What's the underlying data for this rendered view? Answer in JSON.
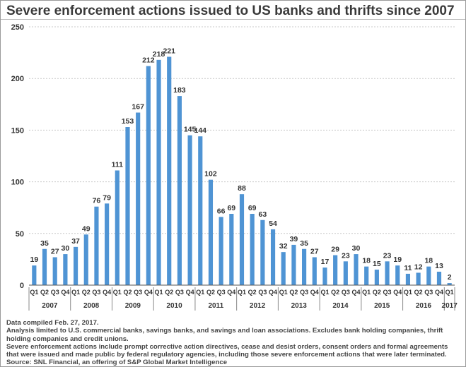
{
  "title": "Severe enforcement actions issued to US banks and thrifts since 2007",
  "chart_data": {
    "type": "bar",
    "ylim": [
      0,
      250
    ],
    "yticks": [
      0,
      50,
      100,
      150,
      200,
      250
    ],
    "grid": true,
    "bar_color": "#4f94d4",
    "categories": [
      "Q1",
      "Q2",
      "Q3",
      "Q4",
      "Q1",
      "Q2",
      "Q3",
      "Q4",
      "Q1",
      "Q2",
      "Q3",
      "Q4",
      "Q1",
      "Q2",
      "Q3",
      "Q4",
      "Q1",
      "Q2",
      "Q3",
      "Q4",
      "Q1",
      "Q2",
      "Q3",
      "Q4",
      "Q1",
      "Q2",
      "Q3",
      "Q4",
      "Q1",
      "Q2",
      "Q3",
      "Q4",
      "Q1",
      "Q2",
      "Q3",
      "Q4",
      "Q1",
      "Q2",
      "Q3",
      "Q4",
      "Q1"
    ],
    "values": [
      19,
      35,
      27,
      30,
      37,
      49,
      76,
      79,
      111,
      153,
      167,
      212,
      218,
      221,
      183,
      145,
      144,
      102,
      66,
      69,
      88,
      69,
      63,
      54,
      32,
      39,
      35,
      27,
      17,
      29,
      23,
      30,
      18,
      15,
      23,
      19,
      11,
      12,
      18,
      13,
      2
    ],
    "year_groups": [
      {
        "label": "2007",
        "count": 4
      },
      {
        "label": "2008",
        "count": 4
      },
      {
        "label": "2009",
        "count": 4
      },
      {
        "label": "2010",
        "count": 4
      },
      {
        "label": "2011",
        "count": 4
      },
      {
        "label": "2012",
        "count": 4
      },
      {
        "label": "2013",
        "count": 4
      },
      {
        "label": "2014",
        "count": 4
      },
      {
        "label": "2015",
        "count": 4
      },
      {
        "label": "2016",
        "count": 4
      },
      {
        "label": "2017",
        "count": 1
      }
    ]
  },
  "notes": [
    "Data compiled Feb. 27, 2017.",
    "Analysis limited to U.S. commercial banks, savings banks, and savings and loan associations. Excludes bank holding companies, thrift holding companies and credit unions.",
    "Severe enforcement actions include prompt corrective action directives, cease and desist orders, consent orders and formal agreements that were issued and made public by federal regulatory agencies, including those severe enforcement actions that were later terminated.",
    "Source: SNL Financial, an offering of S&P Global Market Intelligence"
  ]
}
